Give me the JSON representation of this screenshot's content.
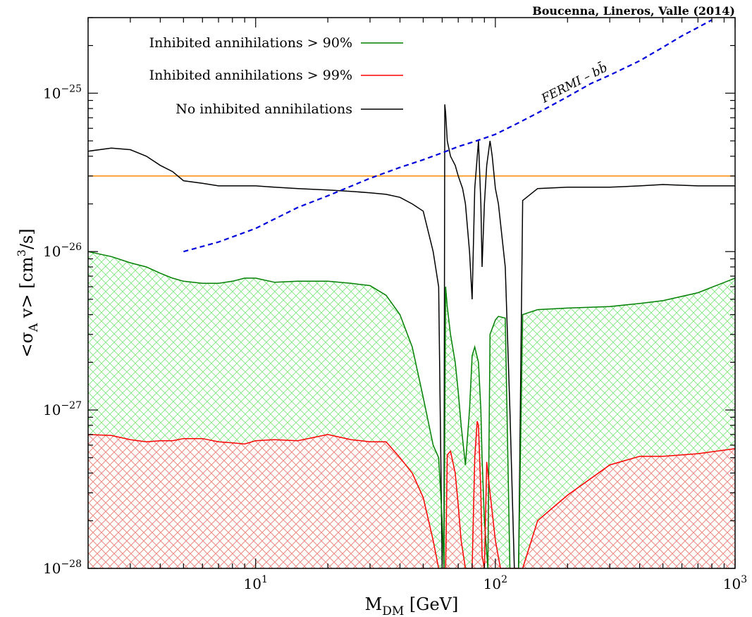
{
  "chart_data": {
    "type": "line",
    "title": "",
    "credit": "Boucenna, Lineros, Valle (2014)",
    "xlabel": {
      "main": "M",
      "sub": "DM",
      "rest": " [GeV]"
    },
    "ylabel": {
      "pre": "<σ",
      "sub": "A",
      "mid": " v>  [cm",
      "sup": "3",
      "post": "/s]"
    },
    "xscale": "log",
    "yscale": "log",
    "xlim": [
      2,
      1000
    ],
    "ylim": [
      1e-28,
      3e-25
    ],
    "xticks": [
      {
        "value": 10,
        "base": "10",
        "exp": "1"
      },
      {
        "value": 100,
        "base": "10",
        "exp": "2"
      },
      {
        "value": 1000,
        "base": "10",
        "exp": "3"
      }
    ],
    "yticks": [
      {
        "value": 1e-28,
        "base": "10",
        "exp": "−28"
      },
      {
        "value": 1e-27,
        "base": "10",
        "exp": "−27"
      },
      {
        "value": 1e-26,
        "base": "10",
        "exp": "−26"
      },
      {
        "value": 1e-25,
        "base": "10",
        "exp": "−25"
      }
    ],
    "grid": false,
    "legend_position": "top-left",
    "legend": [
      {
        "label": "Inhibited annihilations > 90%",
        "color": "#008000"
      },
      {
        "label": "Inhibited annihilations > 99%",
        "color": "#ff0000"
      },
      {
        "label": "No inhibited annihilations",
        "color": "#000000"
      }
    ],
    "annotation": {
      "text": "FERMI – bb̄",
      "color": "#0000dd"
    },
    "hline": {
      "y": 3e-26,
      "color": "#ff8c00"
    },
    "series": [
      {
        "name": "No inhibited annihilations",
        "color": "#000000",
        "x": [
          2,
          2.5,
          3,
          3.5,
          4,
          4.5,
          5,
          6,
          7,
          8,
          9,
          10,
          12,
          15,
          20,
          25,
          30,
          35,
          40,
          45,
          50,
          55,
          58,
          60,
          61,
          61.5,
          62,
          63,
          65,
          68,
          70,
          73,
          75,
          78,
          80,
          82,
          85,
          87,
          88,
          90,
          92,
          95,
          97,
          100,
          103,
          110,
          115,
          120,
          125,
          130,
          150,
          200,
          300,
          400,
          500,
          700,
          1000
        ],
        "y": [
          4.3e-26,
          4.5e-26,
          4.4e-26,
          4e-26,
          3.5e-26,
          3.2e-26,
          2.8e-26,
          2.7e-26,
          2.6e-26,
          2.6e-26,
          2.6e-26,
          2.6e-26,
          2.55e-26,
          2.5e-26,
          2.45e-26,
          2.4e-26,
          2.35e-26,
          2.3e-26,
          2.2e-26,
          2e-26,
          1.8e-26,
          1e-26,
          6e-27,
          1e-28,
          1e-28,
          8.5e-26,
          7.5e-26,
          5e-26,
          4e-26,
          3.5e-26,
          3e-26,
          2.5e-26,
          2e-26,
          1e-26,
          5e-27,
          2.5e-26,
          5e-26,
          2e-26,
          8e-27,
          2e-26,
          3.5e-26,
          5e-26,
          4e-26,
          2.5e-26,
          2e-26,
          8e-27,
          1e-27,
          1e-28,
          1e-28,
          2.1e-26,
          2.5e-26,
          2.55e-26,
          2.55e-26,
          2.6e-26,
          2.65e-26,
          2.6e-26,
          2.6e-26
        ]
      },
      {
        "name": "Inhibited annihilations > 90%",
        "color": "#008000",
        "x": [
          2,
          2.5,
          3,
          3.5,
          4,
          4.5,
          5,
          6,
          7,
          8,
          9,
          10,
          12,
          15,
          20,
          25,
          30,
          35,
          40,
          45,
          50,
          55,
          58,
          60,
          61,
          62,
          63,
          65,
          68,
          70,
          72,
          75,
          78,
          80,
          82,
          85,
          87,
          88,
          90,
          93,
          95,
          100,
          103,
          110,
          115,
          120,
          125,
          130,
          150,
          200,
          300,
          400,
          500,
          700,
          1000
        ],
        "y": [
          1e-26,
          9.3e-27,
          8.5e-27,
          8e-27,
          7.3e-27,
          6.8e-27,
          6.5e-27,
          6.3e-27,
          6.3e-27,
          6.5e-27,
          6.8e-27,
          6.8e-27,
          6.4e-27,
          6.5e-27,
          6.5e-27,
          6.3e-27,
          6.1e-27,
          5.3e-27,
          4e-27,
          2.5e-27,
          1.2e-27,
          6e-28,
          5e-28,
          2e-28,
          1e-28,
          6e-27,
          4.5e-27,
          3e-27,
          2e-27,
          1.3e-27,
          8e-28,
          4.5e-28,
          1e-27,
          2.2e-27,
          2.5e-27,
          2e-27,
          1e-27,
          5e-28,
          2e-28,
          1e-28,
          3e-27,
          3.7e-27,
          3.9e-27,
          3.8e-27,
          1e-28,
          1e-28,
          1e-28,
          4e-27,
          4.3e-27,
          4.4e-27,
          4.5e-27,
          4.7e-27,
          4.9e-27,
          5.5e-27,
          6.8e-27
        ]
      },
      {
        "name": "Inhibited annihilations > 99%",
        "color": "#ff0000",
        "x": [
          2,
          2.5,
          3,
          3.5,
          4,
          4.5,
          5,
          6,
          7,
          8,
          9,
          10,
          12,
          15,
          20,
          25,
          30,
          35,
          40,
          45,
          50,
          55,
          58,
          60,
          62,
          63,
          65,
          68,
          70,
          72,
          75,
          78,
          80,
          82,
          84,
          85,
          87,
          88,
          90,
          92,
          95,
          100,
          105,
          110,
          115,
          120,
          125,
          130,
          150,
          200,
          300,
          400,
          500,
          700,
          1000
        ],
        "y": [
          7e-28,
          6.9e-28,
          6.5e-28,
          6.3e-28,
          6.4e-28,
          6.4e-28,
          6.6e-28,
          6.6e-28,
          6.3e-28,
          6.2e-28,
          6.1e-28,
          6.4e-28,
          6.5e-28,
          6.4e-28,
          7e-28,
          6.5e-28,
          6.3e-28,
          6.3e-28,
          5e-28,
          4e-28,
          2.8e-28,
          1.5e-28,
          1e-28,
          1e-28,
          1e-28,
          5.2e-28,
          5.5e-28,
          4e-28,
          2.5e-28,
          1.5e-28,
          1e-28,
          1e-28,
          1e-28,
          5e-28,
          8.5e-28,
          8e-28,
          3e-28,
          1.2e-28,
          1e-28,
          4.7e-28,
          3e-28,
          1.5e-28,
          1e-28,
          1e-28,
          1e-28,
          1e-28,
          1e-28,
          1e-28,
          2e-28,
          2.9e-28,
          4.5e-28,
          5.1e-28,
          5.1e-28,
          5.3e-28,
          5.7e-28
        ]
      },
      {
        "name": "FERMI – bb̄",
        "color": "#0000dd",
        "dashed": true,
        "x": [
          5,
          7,
          10,
          15,
          20,
          30,
          40,
          50,
          60,
          70,
          80,
          90,
          100,
          120,
          150,
          200,
          250,
          300,
          400,
          500,
          600,
          700,
          800
        ],
        "y": [
          1e-26,
          1.15e-26,
          1.4e-26,
          1.9e-26,
          2.25e-26,
          2.9e-26,
          3.4e-26,
          3.8e-26,
          4.2e-26,
          4.6e-26,
          4.9e-26,
          5.2e-26,
          5.5e-26,
          6.3e-26,
          7.5e-26,
          9.5e-26,
          1.15e-25,
          1.3e-25,
          1.6e-25,
          1.95e-25,
          2.3e-25,
          2.6e-25,
          2.9e-25
        ]
      }
    ]
  }
}
